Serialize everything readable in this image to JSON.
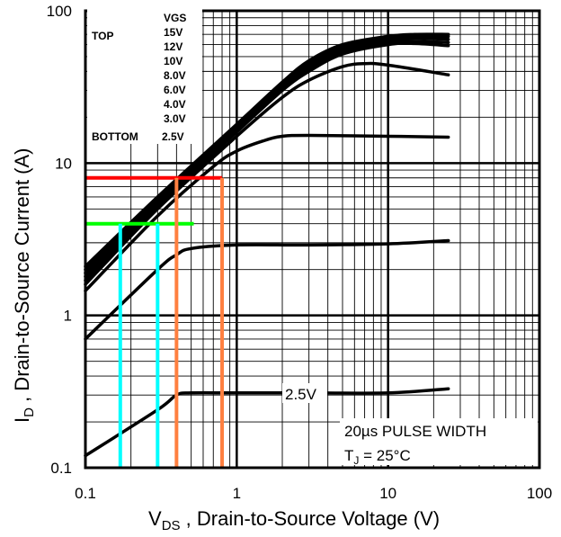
{
  "chart_data": {
    "type": "line",
    "xscale": "log",
    "yscale": "log",
    "xlim": [
      0.1,
      100
    ],
    "ylim": [
      0.1,
      100
    ],
    "grid": true,
    "x_ticks": [
      "0.1",
      "1",
      "10",
      "100"
    ],
    "y_ticks": [
      "0.1",
      "1",
      "10",
      "100"
    ],
    "xlabel": {
      "main": "V",
      "sub": "DS",
      "rest": " , Drain-to-Source Voltage (V)"
    },
    "ylabel": {
      "main": "I",
      "sub": "D",
      "rest": " , Drain-to-Source Current (A)"
    },
    "legend": {
      "header": "VGS",
      "top_label": "TOP",
      "bottom_label": "BOTTOM",
      "entries": [
        "15V",
        "12V",
        "10V",
        "8.0V",
        "6.0V",
        "4.0V",
        "3.0V",
        "2.5V"
      ]
    },
    "note": {
      "line1": "20µs PULSE WIDTH",
      "line2_main": "T",
      "line2_sub": "J",
      "line2_rest": " = 25°C"
    },
    "curve_label": "2.5V",
    "series": [
      {
        "name": "15V",
        "x": [
          0.1,
          0.3,
          1,
          2,
          3,
          5,
          10,
          15,
          25
        ],
        "y": [
          2.1,
          6.0,
          18,
          34,
          47,
          60,
          68,
          70,
          70
        ]
      },
      {
        "name": "12V",
        "x": [
          0.1,
          0.3,
          1,
          2,
          3,
          5,
          10,
          15,
          25
        ],
        "y": [
          2.0,
          5.8,
          17.5,
          33,
          45,
          58,
          66,
          68,
          68
        ]
      },
      {
        "name": "10V",
        "x": [
          0.1,
          0.3,
          1,
          2,
          3,
          5,
          10,
          15,
          25
        ],
        "y": [
          1.9,
          5.6,
          17,
          32,
          44,
          56,
          64,
          66,
          65
        ]
      },
      {
        "name": "8.0V",
        "x": [
          0.1,
          0.3,
          1,
          2,
          3,
          5,
          10,
          15,
          25
        ],
        "y": [
          1.8,
          5.4,
          16.5,
          31,
          42,
          54,
          62,
          63,
          62
        ]
      },
      {
        "name": "6.0V",
        "x": [
          0.1,
          0.3,
          1,
          2,
          3,
          5,
          10,
          15,
          25
        ],
        "y": [
          1.7,
          5.2,
          16,
          30,
          40,
          52,
          60,
          61,
          59
        ]
      },
      {
        "name": "4.0V",
        "x": [
          0.1,
          0.3,
          1,
          2,
          3,
          5,
          7,
          10,
          25
        ],
        "y": [
          1.6,
          5.0,
          15,
          27,
          35,
          43,
          45,
          44,
          38
        ]
      },
      {
        "name": "3.0V",
        "x": [
          0.1,
          0.3,
          0.7,
          1,
          1.5,
          2,
          3,
          10,
          25
        ],
        "y": [
          1.45,
          4.5,
          9.5,
          12,
          14,
          15,
          15.2,
          15,
          14.8
        ]
      },
      {
        "name": "2.5V",
        "x": [
          0.1,
          0.3,
          0.4,
          0.5,
          1,
          3,
          10,
          25
        ],
        "y": [
          0.7,
          2.0,
          2.5,
          2.75,
          2.9,
          2.9,
          2.95,
          3.1
        ]
      },
      {
        "name": "2.5V",
        "x": [
          0.1,
          0.3,
          0.4,
          0.5,
          1,
          3,
          10,
          25
        ],
        "y": [
          0.12,
          0.24,
          0.3,
          0.31,
          0.31,
          0.31,
          0.31,
          0.33
        ]
      }
    ],
    "markers": [
      {
        "color": "#ff0000",
        "x": [
          0.1,
          0.8
        ],
        "y": [
          8,
          8
        ]
      },
      {
        "color": "#00ff00",
        "x": [
          0.1,
          0.52
        ],
        "y": [
          4,
          4
        ]
      },
      {
        "color": "#ff8040",
        "x": [
          0.4,
          0.4
        ],
        "y": [
          0.1,
          8
        ]
      },
      {
        "color": "#ff8040",
        "x": [
          0.8,
          0.8
        ],
        "y": [
          0.1,
          8
        ]
      },
      {
        "color": "#00ffff",
        "x": [
          0.17,
          0.17
        ],
        "y": [
          0.1,
          4
        ]
      },
      {
        "color": "#00ffff",
        "x": [
          0.3,
          0.3
        ],
        "y": [
          0.1,
          4
        ]
      }
    ]
  }
}
